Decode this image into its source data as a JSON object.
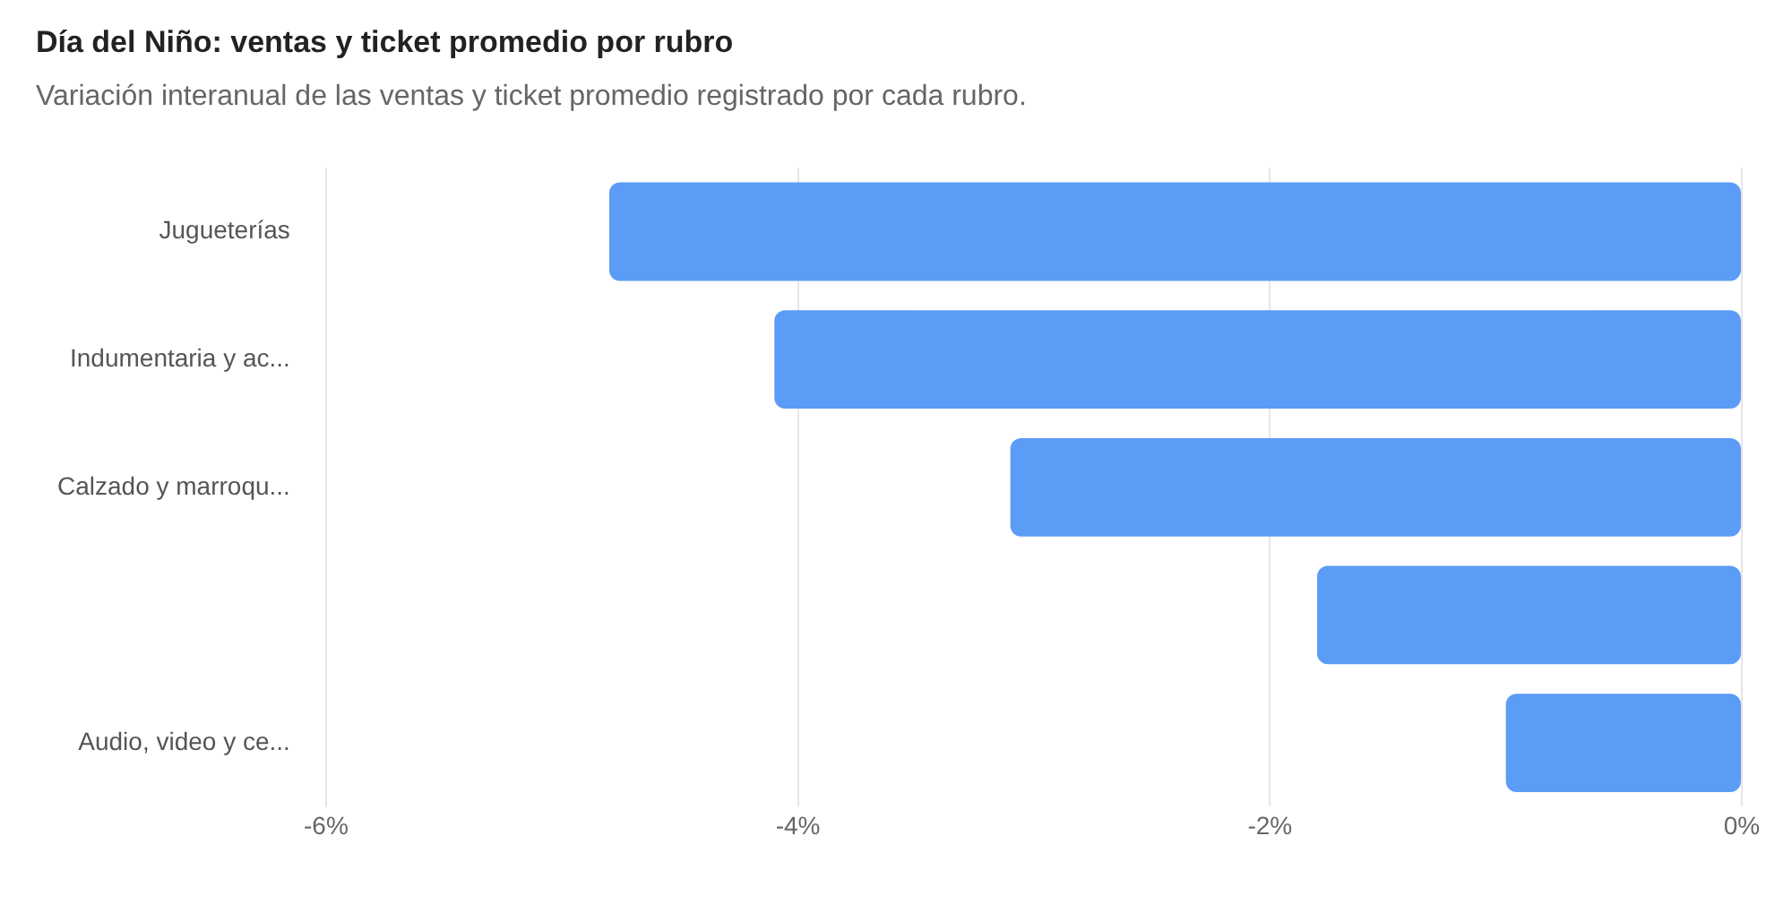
{
  "chart_data": {
    "type": "bar",
    "orientation": "horizontal",
    "title": "Día del Niño: ventas y ticket promedio por rubro",
    "subtitle": "Variación interanual de las ventas y ticket promedio registrado por cada rubro.",
    "categories": [
      "Jugueterías",
      "Indumentaria y ac...",
      "Calzado y marroqu...",
      null,
      "Audio, video y ce..."
    ],
    "values": [
      -4.8,
      -4.1,
      -3.1,
      -1.8,
      -1.0
    ],
    "color": "#5b9cf6",
    "xlim": [
      -6,
      0
    ],
    "xticks": [
      {
        "value": -6,
        "label": "-6%"
      },
      {
        "value": -4,
        "label": "-4%"
      },
      {
        "value": -2,
        "label": "-2%"
      },
      {
        "value": 0,
        "label": "0%"
      }
    ],
    "grid": "x",
    "legend": false
  }
}
